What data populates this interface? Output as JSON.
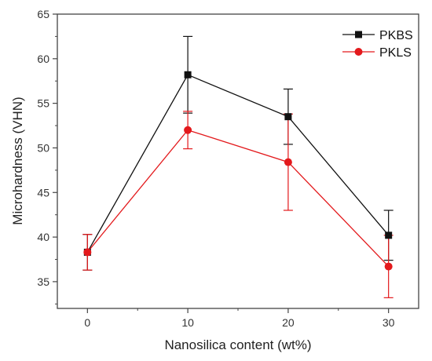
{
  "chart_data": {
    "type": "line",
    "xlabel": "Nanosilica content (wt%)",
    "ylabel": "Microhardness (VHN)",
    "x": [
      0,
      10,
      20,
      30
    ],
    "xlim": [
      -3,
      33
    ],
    "ylim": [
      32,
      65
    ],
    "xticks": [
      0,
      10,
      20,
      30
    ],
    "yticks": [
      35,
      40,
      45,
      50,
      55,
      60,
      65
    ],
    "grid": false,
    "legend_position": "top-right",
    "series": [
      {
        "name": "PKBS",
        "color": "#111111",
        "marker": "square",
        "values": [
          38.3,
          58.2,
          53.5,
          40.2
        ],
        "error_low": [
          36.3,
          53.9,
          50.4,
          37.4
        ],
        "error_high": [
          40.3,
          62.5,
          56.6,
          43.0
        ]
      },
      {
        "name": "PKLS",
        "color": "#e3191c",
        "marker": "circle",
        "values": [
          38.3,
          52.0,
          48.4,
          36.7
        ],
        "error_low": [
          36.3,
          49.9,
          43.0,
          33.2
        ],
        "error_high": [
          40.3,
          54.1,
          53.8,
          40.2
        ]
      }
    ]
  }
}
